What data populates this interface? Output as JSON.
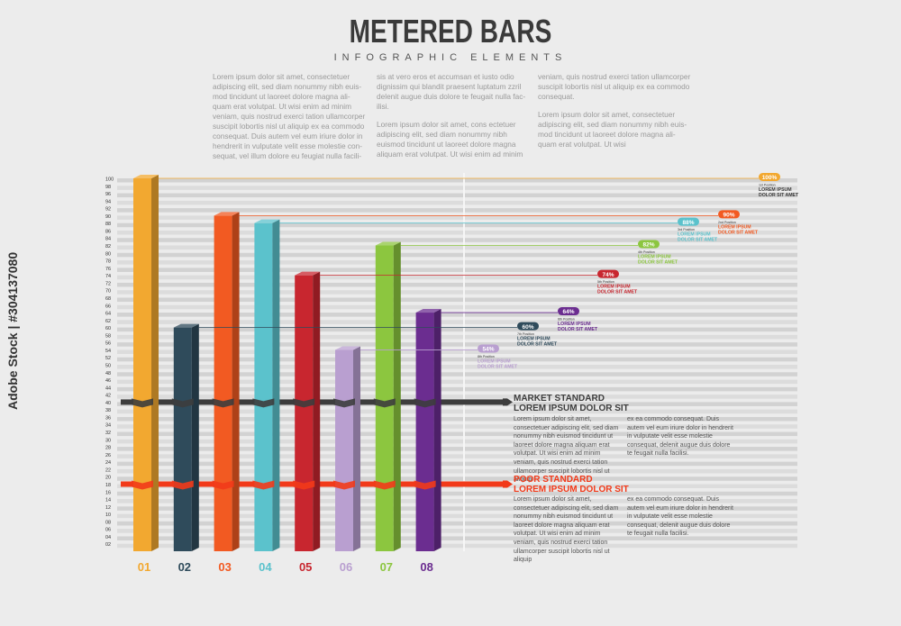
{
  "header": {
    "title": "METERED BARS",
    "subtitle": "INFOGRAPHIC ELEMENTS"
  },
  "intro": {
    "col1": "Lorem ipsum dolor sit amet, consectetuer adipiscing elit, sed diam nonummy nibh euis-mod tincidunt ut laoreet dolore magna ali-quam erat volutpat. Ut wisi enim ad minim veniam, quis nostrud exerci tation ullamcorper suscipit lobortis nisl ut aliquip ex ea commodo consequat. Duis autem vel eum iriure dolor in hendrerit in vulputate velit esse molestie con-sequat, vel illum dolore eu feugiat nulla facili-",
    "col2a": "sis at vero eros et accumsan et iusto odio dignissim qui blandit praesent luptatum zzril delenit augue duis dolore te feugait nulla fac-ilisi.",
    "col2b": "Lorem ipsum dolor sit amet, cons ectetuer adipiscing elit, sed diam nonummy nibh euismod tincidunt ut laoreet dolore magna aliquam erat volutpat. Ut wisi enim ad minim",
    "col3a": "veniam, quis nostrud exerci tation ullamcorper suscipit lobortis nisl ut aliquip ex ea commodo consequat.",
    "col3b": "Lorem ipsum dolor sit amet, consectetuer adipiscing elit, sed diam nonummy nibh euis-mod tincidunt ut laoreet dolore magna ali-quam erat volutpat. Ut wisi"
  },
  "chart_data": {
    "type": "bar",
    "categories": [
      "01",
      "02",
      "03",
      "04",
      "05",
      "06",
      "07",
      "08"
    ],
    "values": [
      100,
      60,
      90,
      88,
      74,
      54,
      82,
      64
    ],
    "colors": [
      "#f2a830",
      "#2f4b5b",
      "#f25a22",
      "#5bc2cc",
      "#c8262f",
      "#b99fd0",
      "#8cc63f",
      "#6b2d90"
    ],
    "ylim": [
      0,
      100
    ],
    "yticks": [
      "02",
      "04",
      "06",
      "08",
      "10",
      "12",
      "14",
      "16",
      "18",
      "20",
      "22",
      "24",
      "26",
      "28",
      "30",
      "32",
      "34",
      "36",
      "38",
      "40",
      "42",
      "44",
      "46",
      "48",
      "50",
      "52",
      "54",
      "56",
      "58",
      "60",
      "62",
      "64",
      "66",
      "68",
      "70",
      "72",
      "74",
      "76",
      "78",
      "80",
      "82",
      "84",
      "86",
      "88",
      "90",
      "92",
      "94",
      "96",
      "98",
      "100"
    ],
    "callouts": [
      {
        "bar": 0,
        "pct": "100%",
        "position": "1st Position",
        "label1": "LOREM IPSUM",
        "label2": "DOLOR SIT AMET",
        "color": "#f2a830",
        "text_color": "#3a3a3a"
      },
      {
        "bar": 2,
        "pct": "90%",
        "position": "2nd Position",
        "label1": "LOREM IPSUM",
        "label2": "DOLOR SIT AMET",
        "color": "#f25a22",
        "text_color": "#f25a22"
      },
      {
        "bar": 3,
        "pct": "88%",
        "position": "3rd Position",
        "label1": "LOREM IPSUM",
        "label2": "DOLOR SIT AMET",
        "color": "#5bc2cc",
        "text_color": "#5bc2cc"
      },
      {
        "bar": 6,
        "pct": "82%",
        "position": "4th Position",
        "label1": "LOREM IPSUM",
        "label2": "DOLOR SIT AMET",
        "color": "#8cc63f",
        "text_color": "#8cc63f"
      },
      {
        "bar": 4,
        "pct": "74%",
        "position": "5th Position",
        "label1": "LOREM IPSUM",
        "label2": "DOLOR SIT AMET",
        "color": "#c8262f",
        "text_color": "#c8262f"
      },
      {
        "bar": 7,
        "pct": "64%",
        "position": "6th Position",
        "label1": "LOREM IPSUM",
        "label2": "DOLOR SIT AMET",
        "color": "#6b2d90",
        "text_color": "#6b2d90"
      },
      {
        "bar": 1,
        "pct": "60%",
        "position": "7th Position",
        "label1": "LOREM IPSUM",
        "label2": "DOLOR SIT AMET",
        "color": "#2f4b5b",
        "text_color": "#2f4b5b"
      },
      {
        "bar": 5,
        "pct": "54%",
        "position": "8th Position",
        "label1": "LOREM IPSUM",
        "label2": "DOLOR SIT AMET",
        "color": "#b99fd0",
        "text_color": "#b99fd0"
      }
    ],
    "market_standard": {
      "value": 40,
      "color": "#3d3d3d",
      "title1": "MARKET STANDARD",
      "title2": "LOREM IPSUM DOLOR SIT",
      "text1": "Lorem ipsum dolor sit amet, consectetuer adipiscing elit, sed diam nonummy nibh euismod tincidunt ut laoreet dolore magna aliquam erat volutpat. Ut wisi enim ad minim veniam, quis nostrud exerci tation ullamcorper suscipit lobortis nisl ut aliquip",
      "text2": "ex ea commodo consequat. Duis autem vel eum iriure dolor in hendrerit in vulputate velit esse molestie consequat, delenit augue duis dolore te feugait nulla facilisi."
    },
    "poor_standard": {
      "value": 18,
      "color": "#f23a1a",
      "title1": "POOR STANDARD",
      "title2": "LOREM IPSUM DOLOR SIT",
      "text1": "Lorem ipsum dolor sit amet, consectetuer adipiscing elit, sed diam nonummy nibh euismod tincidunt ut laoreet dolore magna aliquam erat volutpat. Ut wisi enim ad minim veniam, quis nostrud exerci tation ullamcorper suscipit lobortis nisl ut aliquip",
      "text2": "ex ea commodo consequat. Duis autem vel eum iriure dolor in hendrerit in vulputate velit esse molestie consequat, delenit augue duis dolore te feugait nulla facilisi."
    }
  },
  "watermark": "Adobe Stock | #304137080"
}
